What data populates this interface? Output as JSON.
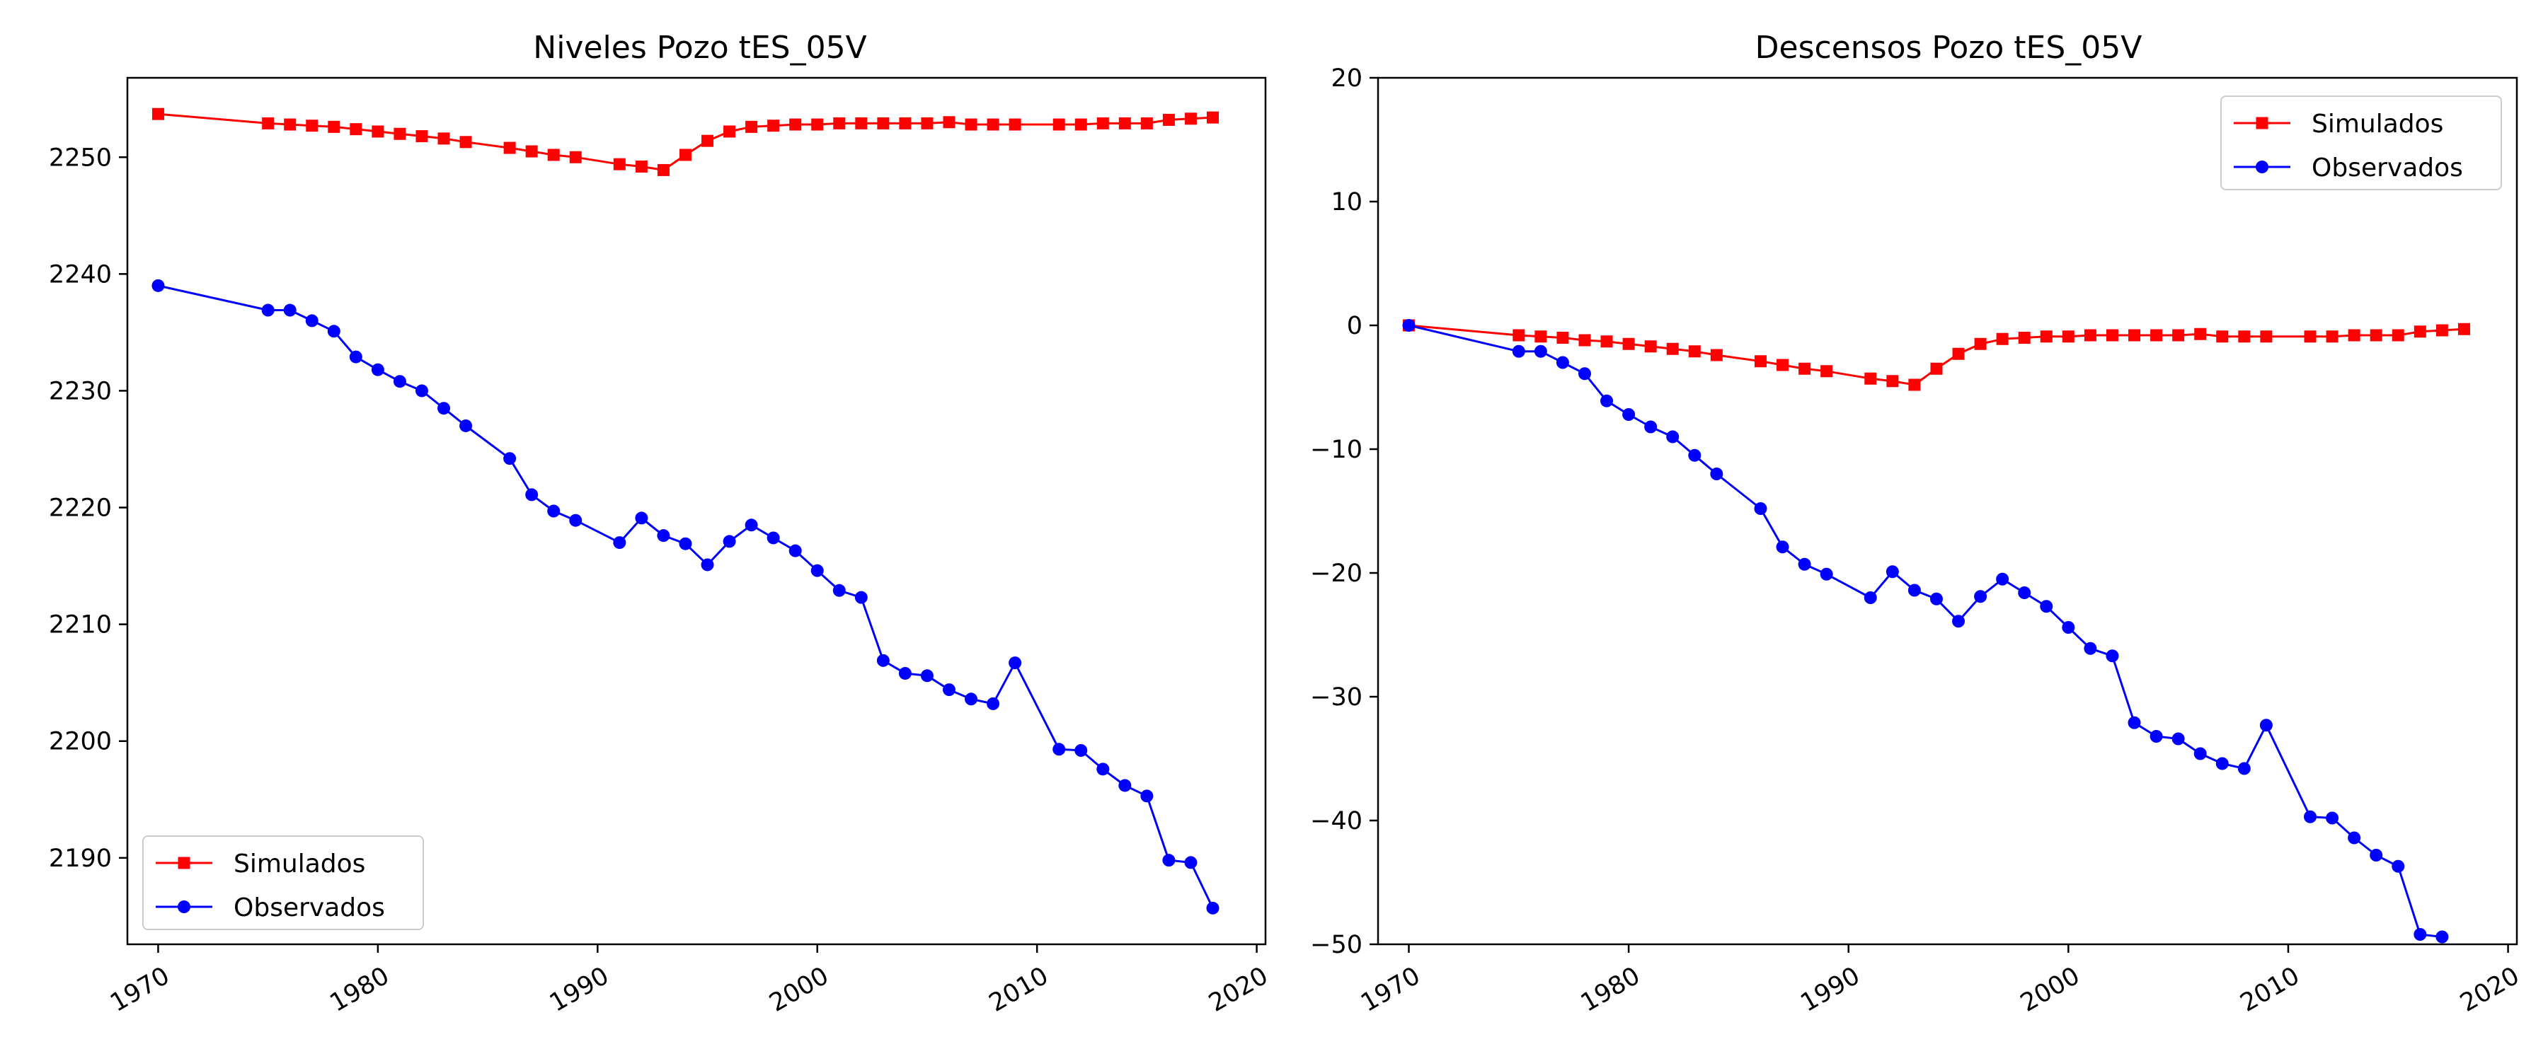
{
  "chart_data": [
    {
      "type": "line",
      "title": "Niveles Pozo tES_05V",
      "xlabel": "",
      "ylabel": "",
      "xlim": [
        1968.6,
        2020.4
      ],
      "ylim": [
        2182.6,
        2256.8
      ],
      "x_ticks": [
        "1970",
        "1980",
        "1990",
        "2000",
        "2010",
        "2020"
      ],
      "y_ticks": [
        "2190",
        "2200",
        "2210",
        "2220",
        "2230",
        "2240",
        "2250"
      ],
      "legend_position": "lower-left",
      "series": [
        {
          "name": "Simulados",
          "color": "#ff0000",
          "marker": "square",
          "x": [
            1970,
            1975,
            1976,
            1977,
            1978,
            1979,
            1980,
            1981,
            1982,
            1983,
            1984,
            1986,
            1987,
            1988,
            1989,
            1991,
            1992,
            1993,
            1994,
            1995,
            1996,
            1997,
            1998,
            1999,
            2000,
            2001,
            2002,
            2003,
            2004,
            2005,
            2006,
            2007,
            2008,
            2009,
            2011,
            2012,
            2013,
            2014,
            2015,
            2016,
            2017,
            2018
          ],
          "y": [
            2253.7,
            2252.9,
            2252.8,
            2252.7,
            2252.6,
            2252.4,
            2252.2,
            2252.0,
            2251.8,
            2251.6,
            2251.3,
            2250.8,
            2250.5,
            2250.2,
            2250.0,
            2249.4,
            2249.2,
            2248.9,
            2250.2,
            2251.4,
            2252.2,
            2252.6,
            2252.7,
            2252.8,
            2252.8,
            2252.9,
            2252.9,
            2252.9,
            2252.9,
            2252.9,
            2253.0,
            2252.8,
            2252.8,
            2252.8,
            2252.8,
            2252.8,
            2252.9,
            2252.9,
            2252.9,
            2253.2,
            2253.3,
            2253.4
          ]
        },
        {
          "name": "Observados",
          "color": "#0000ff",
          "marker": "circle",
          "x": [
            1970,
            1975,
            1976,
            1977,
            1978,
            1979,
            1980,
            1981,
            1982,
            1983,
            1984,
            1986,
            1987,
            1988,
            1989,
            1991,
            1992,
            1993,
            1994,
            1995,
            1996,
            1997,
            1998,
            1999,
            2000,
            2001,
            2002,
            2003,
            2004,
            2005,
            2006,
            2007,
            2008,
            2009,
            2011,
            2012,
            2013,
            2014,
            2015,
            2016,
            2017,
            2018
          ],
          "y": [
            2239.0,
            2236.9,
            2236.9,
            2236.0,
            2235.1,
            2232.9,
            2231.8,
            2230.8,
            2230.0,
            2228.5,
            2227.0,
            2224.2,
            2221.1,
            2219.7,
            2218.9,
            2217.0,
            2219.1,
            2217.6,
            2216.9,
            2215.1,
            2217.1,
            2218.5,
            2217.4,
            2216.3,
            2214.6,
            2212.9,
            2212.3,
            2206.9,
            2205.8,
            2205.6,
            2204.4,
            2203.6,
            2203.2,
            2206.7,
            2199.3,
            2199.2,
            2197.6,
            2196.2,
            2195.3,
            2189.8,
            2189.6,
            2185.7
          ]
        }
      ]
    },
    {
      "type": "line",
      "title": "Descensos Pozo tES_05V",
      "xlabel": "",
      "ylabel": "",
      "xlim": [
        1968.6,
        2020.4
      ],
      "ylim": [
        -50,
        20
      ],
      "x_ticks": [
        "1970",
        "1980",
        "1990",
        "2000",
        "2010",
        "2020"
      ],
      "y_ticks": [
        "−50",
        "−40",
        "−30",
        "−20",
        "−10",
        "0",
        "10",
        "20"
      ],
      "legend_position": "upper-right",
      "series": [
        {
          "name": "Simulados",
          "color": "#ff0000",
          "marker": "square",
          "x": [
            1970,
            1975,
            1976,
            1977,
            1978,
            1979,
            1980,
            1981,
            1982,
            1983,
            1984,
            1986,
            1987,
            1988,
            1989,
            1991,
            1992,
            1993,
            1994,
            1995,
            1996,
            1997,
            1998,
            1999,
            2000,
            2001,
            2002,
            2003,
            2004,
            2005,
            2006,
            2007,
            2008,
            2009,
            2011,
            2012,
            2013,
            2014,
            2015,
            2016,
            2017,
            2018
          ],
          "y": [
            0.0,
            -0.8,
            -0.9,
            -1.0,
            -1.2,
            -1.3,
            -1.5,
            -1.7,
            -1.9,
            -2.1,
            -2.4,
            -2.9,
            -3.2,
            -3.5,
            -3.7,
            -4.3,
            -4.5,
            -4.8,
            -3.5,
            -2.3,
            -1.5,
            -1.1,
            -1.0,
            -0.9,
            -0.9,
            -0.8,
            -0.8,
            -0.8,
            -0.8,
            -0.8,
            -0.7,
            -0.9,
            -0.9,
            -0.9,
            -0.9,
            -0.9,
            -0.8,
            -0.8,
            -0.8,
            -0.5,
            -0.4,
            -0.3
          ]
        },
        {
          "name": "Observados",
          "color": "#0000ff",
          "marker": "circle",
          "x": [
            1970,
            1975,
            1976,
            1977,
            1978,
            1979,
            1980,
            1981,
            1982,
            1983,
            1984,
            1986,
            1987,
            1988,
            1989,
            1991,
            1992,
            1993,
            1994,
            1995,
            1996,
            1997,
            1998,
            1999,
            2000,
            2001,
            2002,
            2003,
            2004,
            2005,
            2006,
            2007,
            2008,
            2009,
            2011,
            2012,
            2013,
            2014,
            2015,
            2016,
            2017
          ],
          "y": [
            0.0,
            -2.1,
            -2.1,
            -3.0,
            -3.9,
            -6.1,
            -7.2,
            -8.2,
            -9.0,
            -10.5,
            -12.0,
            -14.8,
            -17.9,
            -19.3,
            -20.1,
            -22.0,
            -19.9,
            -21.4,
            -22.1,
            -23.9,
            -21.9,
            -20.5,
            -21.6,
            -22.7,
            -24.4,
            -26.1,
            -26.7,
            -32.1,
            -33.2,
            -33.4,
            -34.6,
            -35.4,
            -35.8,
            -32.3,
            -39.7,
            -39.8,
            -41.4,
            -42.8,
            -43.7,
            -49.2,
            -49.4
          ]
        }
      ]
    }
  ]
}
